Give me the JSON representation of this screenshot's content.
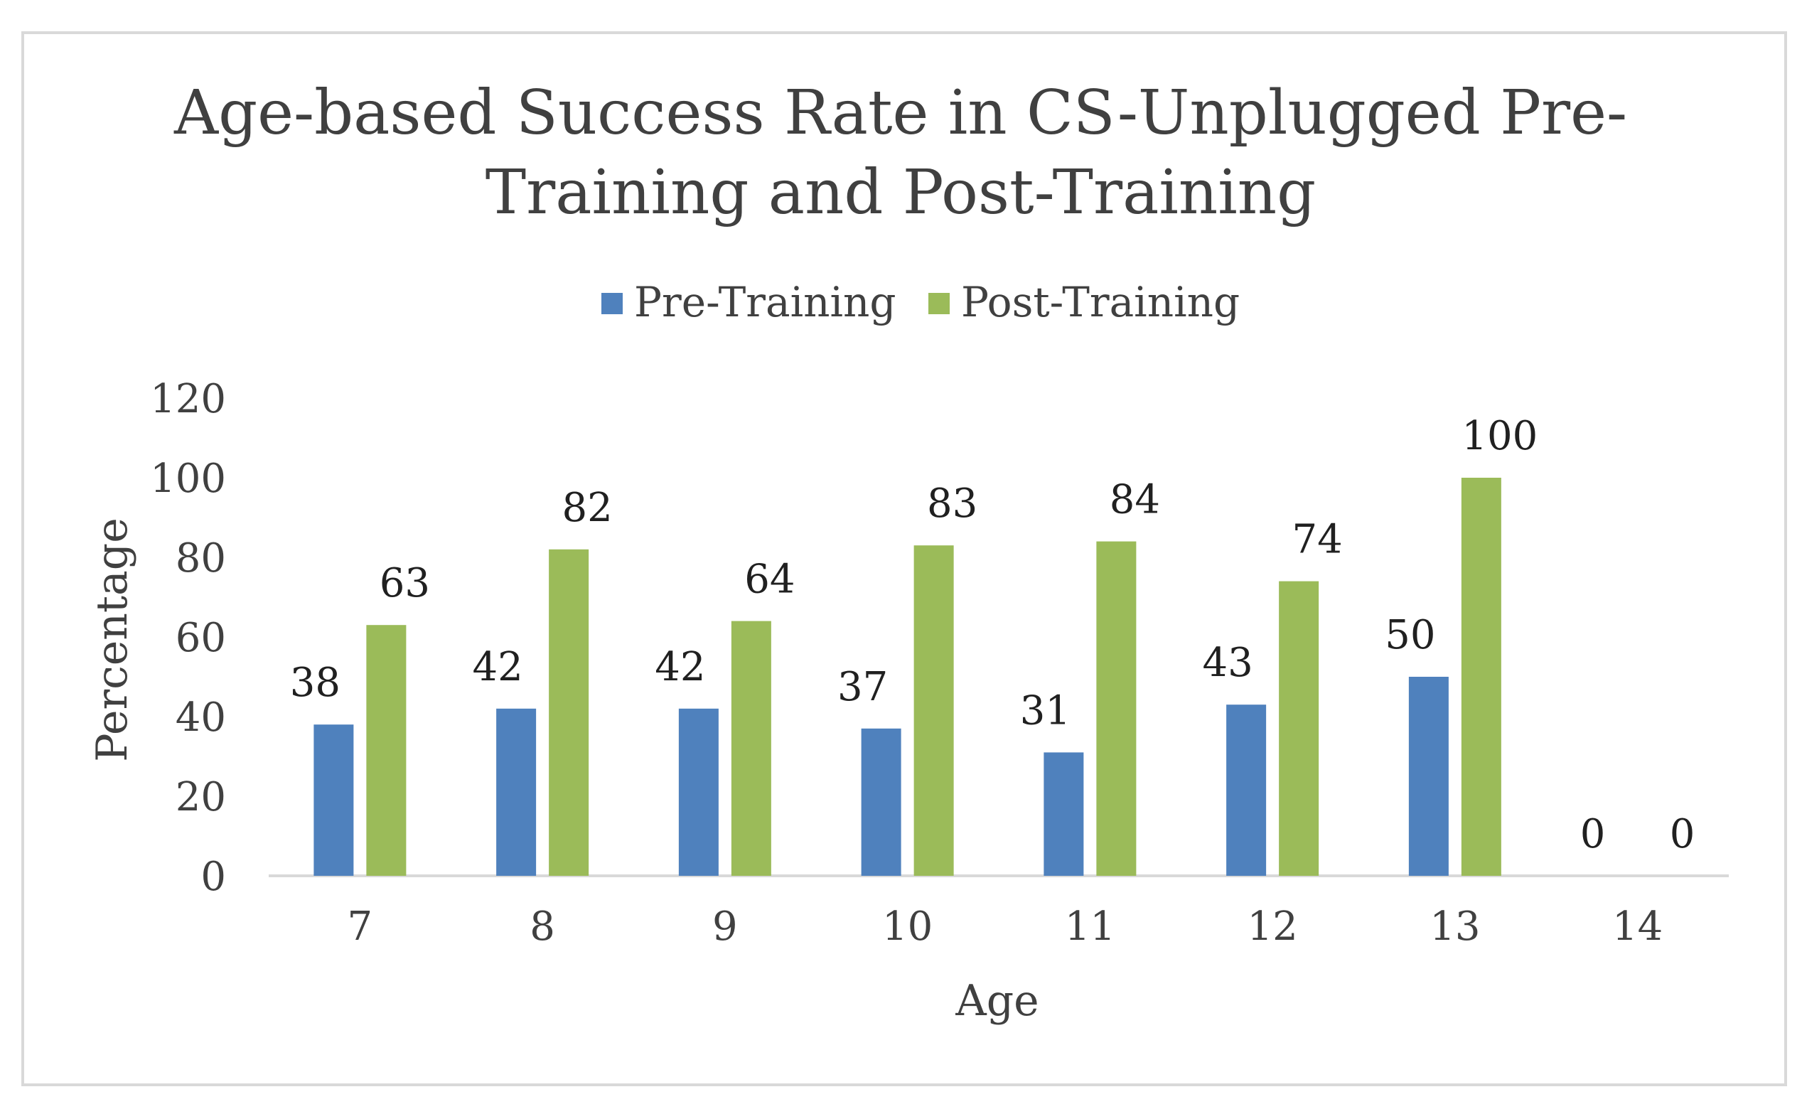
{
  "chart_data": {
    "type": "bar",
    "title_lines": [
      "Age-based Success Rate in CS-Unplugged Pre-",
      "Training and Post-Training"
    ],
    "xlabel": "Age",
    "ylabel": "Percentage",
    "categories": [
      "7",
      "8",
      "9",
      "10",
      "11",
      "12",
      "13",
      "14"
    ],
    "series": [
      {
        "name": "Pre-Training",
        "color": "#4f81bd",
        "values": [
          38,
          42,
          42,
          37,
          31,
          43,
          50,
          0
        ]
      },
      {
        "name": "Post-Training",
        "color": "#9bbb59",
        "values": [
          63,
          82,
          64,
          83,
          84,
          74,
          100,
          0
        ]
      }
    ],
    "ylim": [
      0,
      120
    ],
    "yticks": [
      0,
      20,
      40,
      60,
      80,
      100,
      120
    ],
    "grid": false,
    "legend": "top-center",
    "data_labels": true
  }
}
